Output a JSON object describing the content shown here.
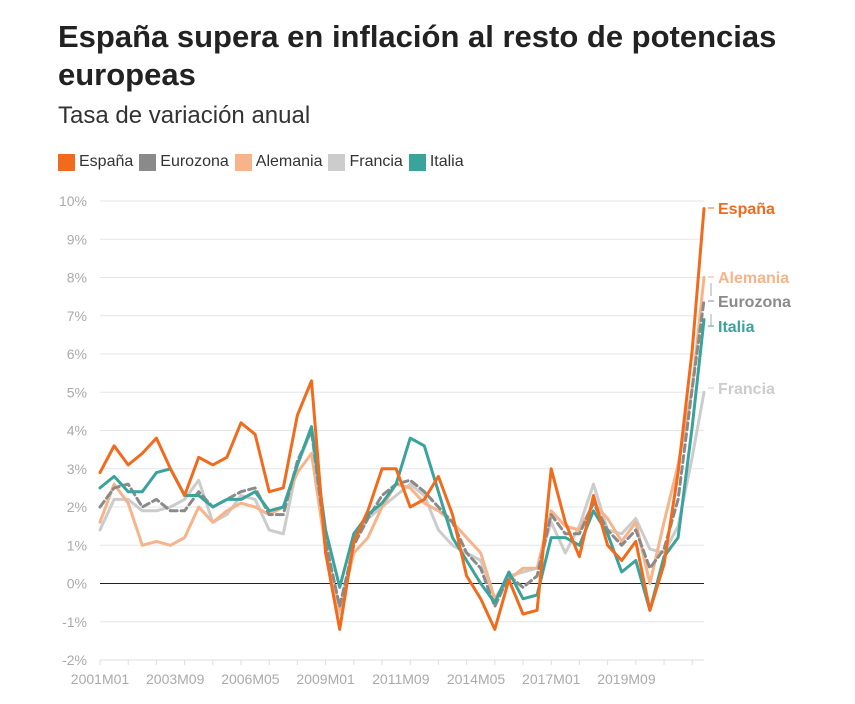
{
  "chart_data": {
    "type": "line",
    "title": "España supera en inflación al resto de potencias europeas",
    "subtitle": "Tasa de variación anual",
    "xlabel": "",
    "ylabel": "",
    "ylim": [
      -2,
      10
    ],
    "yticks": [
      "-2%",
      "-1%",
      "0%",
      "1%",
      "2%",
      "3%",
      "4%",
      "5%",
      "6%",
      "7%",
      "8%",
      "9%",
      "10%"
    ],
    "xticks": [
      "2001M01",
      "2003M09",
      "2006M05",
      "2009M01",
      "2011M09",
      "2014M05",
      "2017M01",
      "2019M09"
    ],
    "x_start": "2001-01",
    "x_end": "2022-06",
    "grid": true,
    "legend_position": "top-left",
    "x": [
      "2001-01",
      "2001-07",
      "2002-01",
      "2002-07",
      "2003-01",
      "2003-07",
      "2004-01",
      "2004-07",
      "2005-01",
      "2005-07",
      "2006-01",
      "2006-07",
      "2007-01",
      "2007-07",
      "2008-01",
      "2008-07",
      "2009-01",
      "2009-07",
      "2010-01",
      "2010-07",
      "2011-01",
      "2011-07",
      "2012-01",
      "2012-07",
      "2013-01",
      "2013-07",
      "2014-01",
      "2014-07",
      "2015-01",
      "2015-07",
      "2016-01",
      "2016-07",
      "2017-01",
      "2017-07",
      "2018-01",
      "2018-07",
      "2019-01",
      "2019-07",
      "2020-01",
      "2020-07",
      "2021-01",
      "2021-07",
      "2022-01",
      "2022-06"
    ],
    "series": [
      {
        "name": "España",
        "color": "#f26b1d",
        "end_label": "España",
        "values": [
          2.9,
          3.6,
          3.1,
          3.4,
          3.8,
          3.0,
          2.3,
          3.3,
          3.1,
          3.3,
          4.2,
          3.9,
          2.4,
          2.5,
          4.4,
          5.3,
          0.8,
          -1.2,
          1.1,
          1.9,
          3.0,
          3.0,
          2.0,
          2.2,
          2.8,
          1.8,
          0.2,
          -0.4,
          -1.2,
          0.1,
          -0.8,
          -0.7,
          3.0,
          1.6,
          0.7,
          2.3,
          1.0,
          0.6,
          1.1,
          -0.7,
          0.5,
          2.9,
          6.1,
          9.8
        ]
      },
      {
        "name": "Eurozona",
        "color": "#8a8a8a",
        "end_label": "Eurozona",
        "values": [
          2.0,
          2.5,
          2.6,
          2.0,
          2.2,
          1.9,
          1.9,
          2.4,
          2.0,
          2.2,
          2.4,
          2.5,
          1.8,
          1.8,
          3.2,
          4.0,
          1.1,
          -0.6,
          1.0,
          1.7,
          2.3,
          2.6,
          2.7,
          2.4,
          2.0,
          1.6,
          0.8,
          0.4,
          -0.6,
          0.2,
          -0.1,
          0.2,
          1.8,
          1.3,
          1.3,
          2.1,
          1.4,
          1.0,
          1.4,
          0.4,
          0.9,
          2.2,
          5.1,
          7.4
        ]
      },
      {
        "name": "Alemania",
        "color": "#f7b38a",
        "end_label": "Alemania",
        "values": [
          1.6,
          2.6,
          2.1,
          1.0,
          1.1,
          1.0,
          1.2,
          2.0,
          1.6,
          1.9,
          2.1,
          2.0,
          1.8,
          2.0,
          2.9,
          3.4,
          0.9,
          -0.7,
          0.8,
          1.2,
          2.0,
          2.6,
          2.5,
          2.1,
          1.9,
          1.6,
          1.2,
          0.8,
          -0.4,
          0.1,
          0.4,
          0.4,
          1.9,
          1.5,
          1.4,
          2.1,
          1.7,
          1.1,
          1.6,
          0.0,
          1.6,
          3.1,
          5.1,
          8.0
        ]
      },
      {
        "name": "Francia",
        "color": "#cccccc",
        "end_label": "Francia",
        "values": [
          1.4,
          2.2,
          2.2,
          1.9,
          1.9,
          2.0,
          2.2,
          2.7,
          1.6,
          1.8,
          2.3,
          2.2,
          1.4,
          1.3,
          3.1,
          4.0,
          1.0,
          -0.8,
          1.1,
          1.7,
          2.0,
          2.3,
          2.6,
          2.3,
          1.4,
          1.0,
          0.8,
          0.6,
          -0.4,
          0.2,
          0.3,
          0.4,
          1.6,
          0.8,
          1.5,
          2.6,
          1.4,
          1.3,
          1.7,
          0.9,
          0.8,
          1.5,
          3.3,
          5.0
        ]
      },
      {
        "name": "Italia",
        "color": "#3aa39b",
        "end_label": "Italia",
        "values": [
          2.5,
          2.8,
          2.4,
          2.4,
          2.9,
          3.0,
          2.3,
          2.3,
          2.0,
          2.2,
          2.2,
          2.4,
          1.9,
          2.0,
          3.1,
          4.1,
          1.4,
          -0.1,
          1.3,
          1.8,
          2.1,
          2.6,
          3.8,
          3.6,
          2.4,
          1.2,
          0.6,
          0.0,
          -0.5,
          0.3,
          -0.4,
          -0.3,
          1.2,
          1.2,
          1.0,
          1.9,
          1.3,
          0.3,
          0.6,
          -0.7,
          0.7,
          1.2,
          4.1,
          6.9
        ]
      }
    ]
  }
}
